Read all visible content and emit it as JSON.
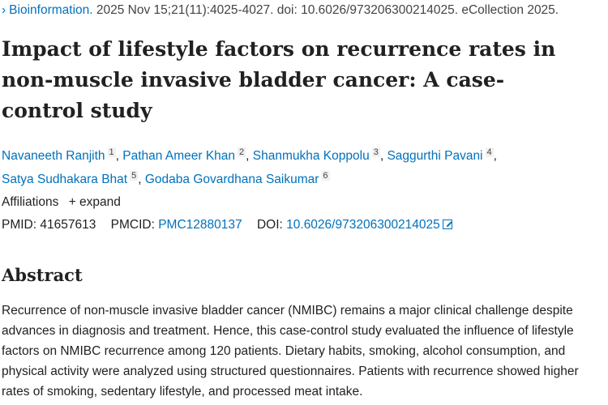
{
  "citation": {
    "journal": "Bioinformation.",
    "details": "2025 Nov 15;21(11):4025-4027. doi: 10.6026/973206300214025. eCollection 2025."
  },
  "title": "Impact of lifestyle factors on recurrence rates in non-muscle invasive bladder cancer: A case-control study",
  "authors": [
    {
      "name": "Navaneeth Ranjith",
      "aff": "1"
    },
    {
      "name": "Pathan Ameer Khan",
      "aff": "2"
    },
    {
      "name": "Shanmukha Koppolu",
      "aff": "3"
    },
    {
      "name": "Saggurthi Pavani",
      "aff": "4"
    },
    {
      "name": "Satya Sudhakara Bhat",
      "aff": "5"
    },
    {
      "name": "Godaba Govardhana Saikumar",
      "aff": "6"
    }
  ],
  "affiliations": {
    "label": "Affiliations",
    "expand": "+ expand"
  },
  "ids": {
    "pmid_label": "PMID:",
    "pmid": "41657613",
    "pmcid_label": "PMCID:",
    "pmcid": "PMC12880137",
    "doi_label": "DOI:",
    "doi": "10.6026/973206300214025"
  },
  "abstract": {
    "heading": "Abstract",
    "text": "Recurrence of non-muscle invasive bladder cancer (NMIBC) remains a major clinical challenge despite advances in diagnosis and treatment. Hence, this case-control study evaluated the influence of lifestyle factors on NMIBC recurrence among 120 patients. Dietary habits, smoking, alcohol consumption, and physical activity were analyzed using structured questionnaires. Patients with recurrence showed higher rates of smoking, sedentary lifestyle, and processed meat intake."
  },
  "colors": {
    "link": "#0071bc",
    "text": "#212121"
  }
}
